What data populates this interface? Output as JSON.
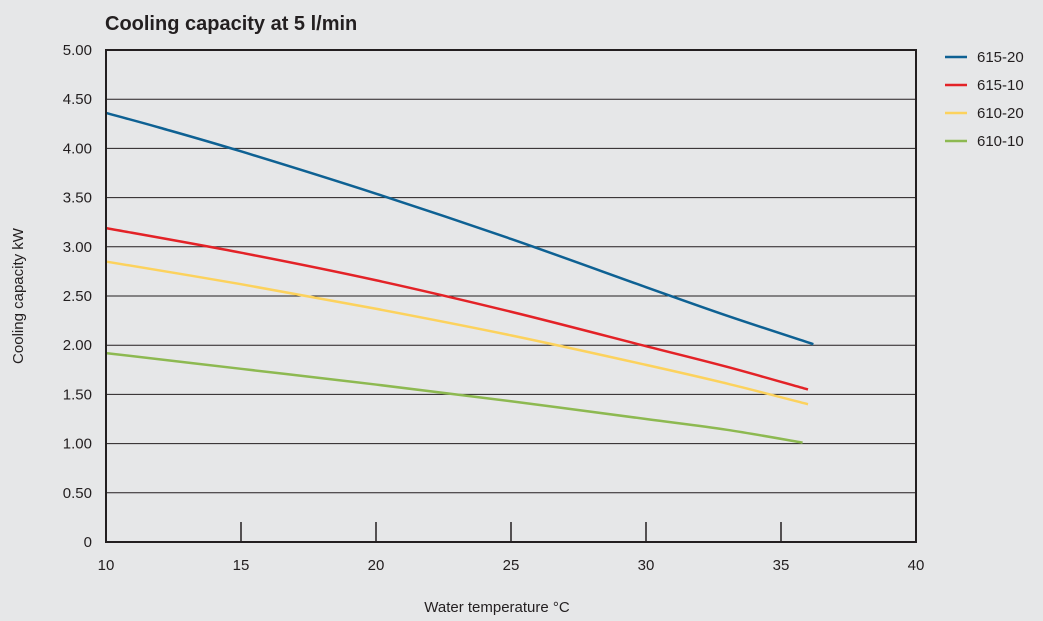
{
  "chart_data": {
    "type": "line",
    "title": "Cooling capacity at 5 l/min",
    "xlabel": "Water temperature °C",
    "ylabel": "Cooling capacity kW",
    "xlim": [
      10,
      40
    ],
    "ylim": [
      0,
      5
    ],
    "x_ticks": [
      "10",
      "15",
      "20",
      "25",
      "30",
      "35",
      "40"
    ],
    "y_ticks": [
      "0",
      "0.50",
      "1.00",
      "1.50",
      "2.00",
      "2.50",
      "3.00",
      "3.50",
      "4.00",
      "4.50",
      "5.00"
    ],
    "grid": "horizontal",
    "legend_position": "right",
    "series": [
      {
        "name": "615-20",
        "color": "#0e6193",
        "points": [
          [
            10,
            4.36
          ],
          [
            12,
            4.21
          ],
          [
            15,
            3.97
          ],
          [
            20,
            3.54
          ],
          [
            25,
            3.08
          ],
          [
            30,
            2.59
          ],
          [
            33,
            2.3
          ],
          [
            36.2,
            2.01
          ]
        ]
      },
      {
        "name": "615-10",
        "color": "#e32227",
        "points": [
          [
            10,
            3.19
          ],
          [
            15,
            2.94
          ],
          [
            20,
            2.66
          ],
          [
            25,
            2.34
          ],
          [
            30,
            1.99
          ],
          [
            33,
            1.78
          ],
          [
            36,
            1.55
          ]
        ]
      },
      {
        "name": "610-20",
        "color": "#fcd25d",
        "points": [
          [
            10,
            2.85
          ],
          [
            15,
            2.62
          ],
          [
            20,
            2.37
          ],
          [
            25,
            2.1
          ],
          [
            30,
            1.8
          ],
          [
            33,
            1.61
          ],
          [
            36,
            1.4
          ]
        ]
      },
      {
        "name": "610-10",
        "color": "#8db951",
        "points": [
          [
            10,
            1.92
          ],
          [
            15,
            1.76
          ],
          [
            20,
            1.6
          ],
          [
            25,
            1.43
          ],
          [
            30,
            1.25
          ],
          [
            33,
            1.14
          ],
          [
            35.8,
            1.01
          ]
        ]
      }
    ]
  }
}
